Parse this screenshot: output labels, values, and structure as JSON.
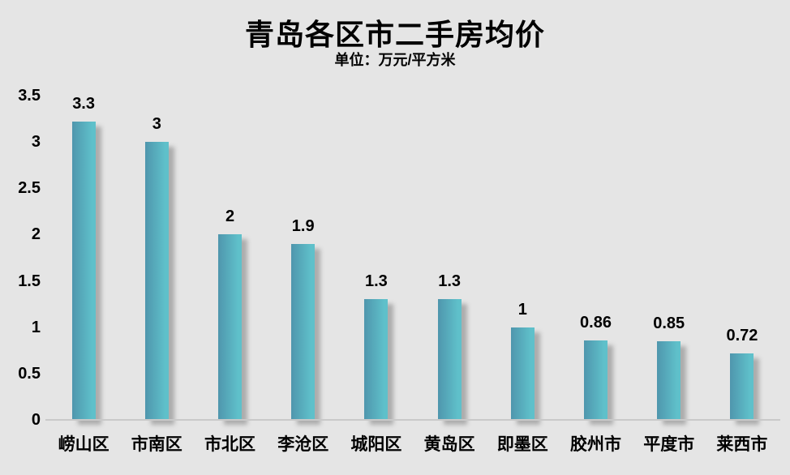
{
  "title": "青岛各区市二手房均价",
  "subtitle": "单位：万元/平方米",
  "chart_data": {
    "type": "bar",
    "title": "青岛各区市二手房均价",
    "subtitle": "单位：万元/平方米",
    "categories": [
      "崂山区",
      "市南区",
      "市北区",
      "李沧区",
      "城阳区",
      "黄岛区",
      "即墨区",
      "胶州市",
      "平度市",
      "莱西市"
    ],
    "values": [
      3.3,
      3,
      2,
      1.9,
      1.3,
      1.3,
      1,
      0.86,
      0.85,
      0.72
    ],
    "value_labels": [
      "3.3",
      "3",
      "2",
      "1.9",
      "1.3",
      "1.3",
      "1",
      "0.86",
      "0.85",
      "0.72"
    ],
    "xlabel": "",
    "ylabel": "",
    "ylim": [
      0,
      3.5
    ],
    "yticks": [
      {
        "value": 3.5,
        "label": "3.5"
      },
      {
        "value": 3,
        "label": "3"
      },
      {
        "value": 2.5,
        "label": "2.5"
      },
      {
        "value": 2,
        "label": "2"
      },
      {
        "value": 1.5,
        "label": "1.5"
      },
      {
        "value": 1,
        "label": "1"
      },
      {
        "value": 0.5,
        "label": "0.5"
      },
      {
        "value": 0,
        "label": "0"
      }
    ],
    "grid": false,
    "legend": "none"
  },
  "colors": {
    "background": "#e5e5e5",
    "bar_gradient_left": "#4f96ad",
    "bar_gradient_right": "#5fc0ca",
    "bar_shadow": "rgba(105,105,105,0.45)",
    "baseline": "#c9c9c9",
    "text": "#000000"
  }
}
